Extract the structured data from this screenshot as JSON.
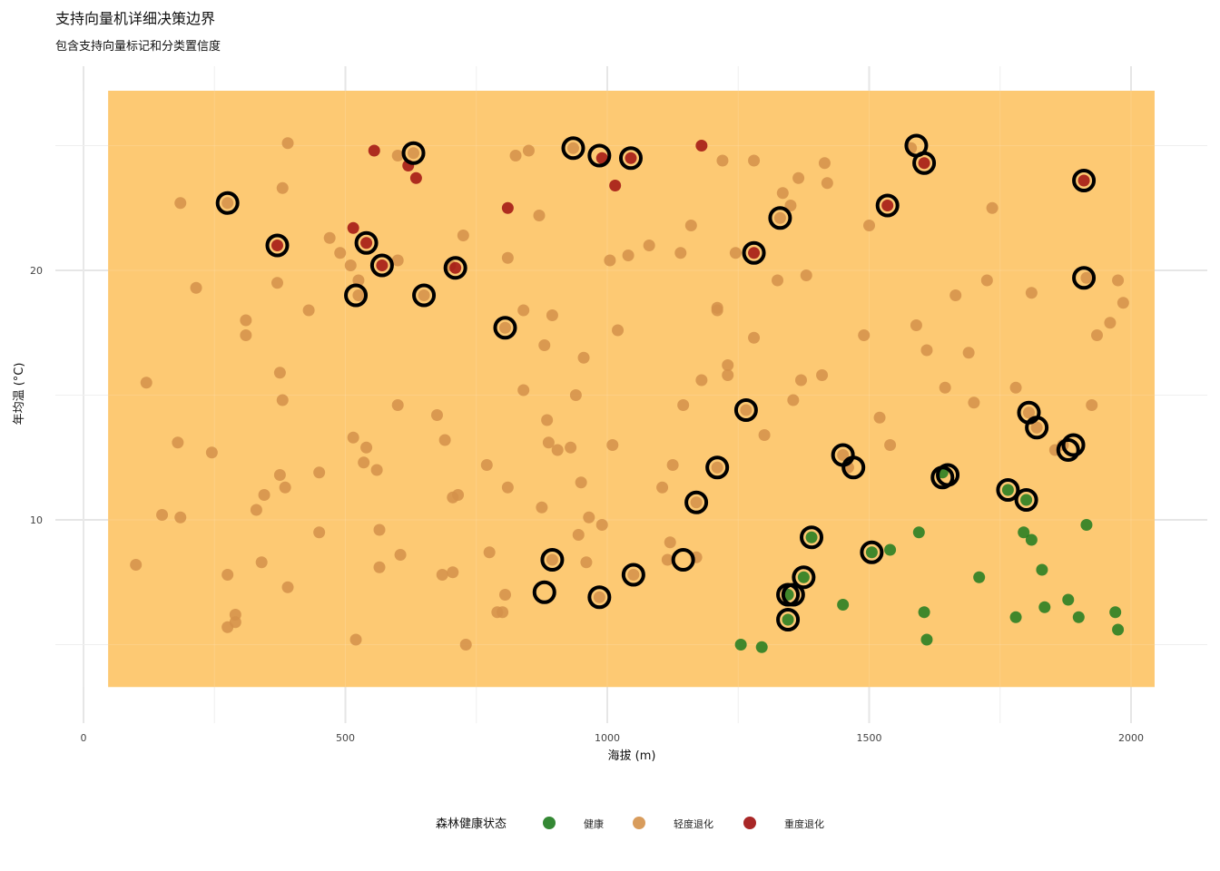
{
  "chart_data": {
    "type": "scatter",
    "title": "支持向量机详细决策边界",
    "subtitle": "包含支持向量标记和分类置信度",
    "xlabel": "海拔 (m)",
    "ylabel": "年均温 (°C)",
    "xlim": [
      0,
      2100
    ],
    "ylim": [
      2.5,
      28.3
    ],
    "x_ticks": [
      0,
      500,
      1000,
      1500,
      2000
    ],
    "y_ticks": [
      10,
      20
    ],
    "grid": true,
    "legend_position": "bottom",
    "legend_title": "森林健康状态",
    "decision_region": {
      "x": [
        47,
        2045
      ],
      "y": [
        3.3,
        27.2
      ],
      "class": "轻度退化",
      "color": "#FDC973"
    },
    "series": [
      {
        "name": "健康",
        "color": "#1E7B1E",
        "points": [
          [
            1255,
            5.0
          ],
          [
            1295,
            4.9
          ],
          [
            1345,
            7.0
          ],
          [
            1345,
            6.0
          ],
          [
            1375,
            7.7
          ],
          [
            1390,
            9.3
          ],
          [
            1450,
            6.6
          ],
          [
            1505,
            8.7
          ],
          [
            1540,
            8.8
          ],
          [
            1595,
            9.5
          ],
          [
            1605,
            6.3
          ],
          [
            1610,
            5.2
          ],
          [
            1640,
            11.9
          ],
          [
            1710,
            7.7
          ],
          [
            1765,
            11.2
          ],
          [
            1780,
            6.1
          ],
          [
            1795,
            9.5
          ],
          [
            1800,
            10.8
          ],
          [
            1810,
            9.2
          ],
          [
            1830,
            8.0
          ],
          [
            1835,
            6.5
          ],
          [
            1880,
            6.8
          ],
          [
            1900,
            6.1
          ],
          [
            1915,
            9.8
          ],
          [
            1970,
            6.3
          ],
          [
            1975,
            5.6
          ]
        ]
      },
      {
        "name": "轻度退化",
        "color": "#D4914A",
        "points": [
          [
            100,
            8.2
          ],
          [
            120,
            15.5
          ],
          [
            150,
            10.2
          ],
          [
            180,
            13.1
          ],
          [
            185,
            22.7
          ],
          [
            185,
            10.1
          ],
          [
            215,
            19.3
          ],
          [
            245,
            12.7
          ],
          [
            275,
            7.8
          ],
          [
            275,
            22.7
          ],
          [
            275,
            5.7
          ],
          [
            290,
            6.2
          ],
          [
            290,
            5.9
          ],
          [
            310,
            18.0
          ],
          [
            310,
            17.4
          ],
          [
            330,
            10.4
          ],
          [
            340,
            8.3
          ],
          [
            345,
            11.0
          ],
          [
            370,
            19.5
          ],
          [
            375,
            15.9
          ],
          [
            375,
            11.8
          ],
          [
            380,
            14.8
          ],
          [
            380,
            23.3
          ],
          [
            385,
            11.3
          ],
          [
            390,
            25.1
          ],
          [
            390,
            7.3
          ],
          [
            430,
            18.4
          ],
          [
            450,
            11.9
          ],
          [
            450,
            9.5
          ],
          [
            470,
            21.3
          ],
          [
            490,
            20.7
          ],
          [
            510,
            20.2
          ],
          [
            515,
            13.3
          ],
          [
            520,
            5.2
          ],
          [
            525,
            19.6
          ],
          [
            525,
            19.0
          ],
          [
            535,
            12.3
          ],
          [
            540,
            12.9
          ],
          [
            560,
            12.0
          ],
          [
            565,
            8.1
          ],
          [
            565,
            9.6
          ],
          [
            600,
            20.4
          ],
          [
            600,
            14.6
          ],
          [
            600,
            24.6
          ],
          [
            605,
            8.6
          ],
          [
            630,
            24.7
          ],
          [
            650,
            19.0
          ],
          [
            675,
            14.2
          ],
          [
            685,
            7.8
          ],
          [
            690,
            13.2
          ],
          [
            700,
            20.2
          ],
          [
            705,
            10.9
          ],
          [
            705,
            7.9
          ],
          [
            715,
            11.0
          ],
          [
            725,
            21.4
          ],
          [
            730,
            5.0
          ],
          [
            770,
            12.2
          ],
          [
            775,
            8.7
          ],
          [
            790,
            6.3
          ],
          [
            800,
            6.3
          ],
          [
            805,
            7.0
          ],
          [
            805,
            17.7
          ],
          [
            810,
            20.5
          ],
          [
            810,
            11.3
          ],
          [
            825,
            24.6
          ],
          [
            840,
            18.4
          ],
          [
            840,
            15.2
          ],
          [
            850,
            24.8
          ],
          [
            870,
            22.2
          ],
          [
            875,
            10.5
          ],
          [
            880,
            17.0
          ],
          [
            885,
            14.0
          ],
          [
            888,
            13.1
          ],
          [
            895,
            8.4
          ],
          [
            895,
            18.2
          ],
          [
            905,
            12.8
          ],
          [
            930,
            12.9
          ],
          [
            935,
            24.9
          ],
          [
            940,
            15.0
          ],
          [
            945,
            9.4
          ],
          [
            950,
            11.5
          ],
          [
            955,
            16.5
          ],
          [
            960,
            8.3
          ],
          [
            965,
            10.1
          ],
          [
            985,
            6.9
          ],
          [
            990,
            9.8
          ],
          [
            1005,
            20.4
          ],
          [
            1010,
            13.0
          ],
          [
            1020,
            17.6
          ],
          [
            1040,
            20.6
          ],
          [
            1050,
            7.8
          ],
          [
            1080,
            21.0
          ],
          [
            1105,
            11.3
          ],
          [
            1115,
            8.4
          ],
          [
            1120,
            9.1
          ],
          [
            1125,
            12.2
          ],
          [
            1140,
            20.7
          ],
          [
            1145,
            14.6
          ],
          [
            1160,
            21.8
          ],
          [
            1170,
            8.5
          ],
          [
            1170,
            10.7
          ],
          [
            1180,
            15.6
          ],
          [
            1210,
            18.5
          ],
          [
            1210,
            18.4
          ],
          [
            1220,
            24.4
          ],
          [
            1210,
            12.1
          ],
          [
            1230,
            16.2
          ],
          [
            1230,
            15.8
          ],
          [
            1245,
            20.7
          ],
          [
            1265,
            14.4
          ],
          [
            1280,
            17.3
          ],
          [
            1280,
            24.4
          ],
          [
            1300,
            13.4
          ],
          [
            1325,
            19.6
          ],
          [
            1330,
            22.1
          ],
          [
            1335,
            23.1
          ],
          [
            1350,
            22.6
          ],
          [
            1355,
            14.8
          ],
          [
            1365,
            23.7
          ],
          [
            1370,
            15.6
          ],
          [
            1380,
            19.8
          ],
          [
            1410,
            15.8
          ],
          [
            1415,
            24.3
          ],
          [
            1420,
            23.5
          ],
          [
            1450,
            12.6
          ],
          [
            1460,
            12.1
          ],
          [
            1490,
            17.4
          ],
          [
            1500,
            21.8
          ],
          [
            1520,
            14.1
          ],
          [
            1540,
            13.0
          ],
          [
            1580,
            24.9
          ],
          [
            1590,
            17.8
          ],
          [
            1610,
            16.8
          ],
          [
            1645,
            15.3
          ],
          [
            1665,
            19.0
          ],
          [
            1690,
            16.7
          ],
          [
            1700,
            14.7
          ],
          [
            1725,
            19.6
          ],
          [
            1735,
            22.5
          ],
          [
            1780,
            15.3
          ],
          [
            1805,
            14.3
          ],
          [
            1810,
            19.1
          ],
          [
            1820,
            13.7
          ],
          [
            1855,
            12.8
          ],
          [
            1870,
            13.0
          ],
          [
            1915,
            19.7
          ],
          [
            1925,
            14.6
          ],
          [
            1935,
            17.4
          ],
          [
            1960,
            17.9
          ],
          [
            1975,
            19.6
          ],
          [
            1985,
            18.7
          ]
        ]
      },
      {
        "name": "重度退化",
        "color": "#A01010",
        "points": [
          [
            370,
            21.0
          ],
          [
            515,
            21.7
          ],
          [
            540,
            21.1
          ],
          [
            555,
            24.8
          ],
          [
            570,
            20.2
          ],
          [
            620,
            24.2
          ],
          [
            635,
            23.7
          ],
          [
            710,
            20.1
          ],
          [
            810,
            22.5
          ],
          [
            990,
            24.5
          ],
          [
            1015,
            23.4
          ],
          [
            1045,
            24.5
          ],
          [
            1180,
            25.0
          ],
          [
            1280,
            20.7
          ],
          [
            1535,
            22.6
          ],
          [
            1605,
            24.3
          ],
          [
            1910,
            23.6
          ]
        ]
      }
    ],
    "support_vectors": [
      [
        275,
        22.7
      ],
      [
        370,
        21.0
      ],
      [
        520,
        19.0
      ],
      [
        540,
        21.1
      ],
      [
        570,
        20.2
      ],
      [
        630,
        24.7
      ],
      [
        650,
        19.0
      ],
      [
        710,
        20.1
      ],
      [
        805,
        17.7
      ],
      [
        880,
        7.1
      ],
      [
        895,
        8.4
      ],
      [
        935,
        24.9
      ],
      [
        985,
        24.6
      ],
      [
        985,
        6.9
      ],
      [
        1045,
        24.5
      ],
      [
        1050,
        7.8
      ],
      [
        1145,
        8.4
      ],
      [
        1170,
        10.7
      ],
      [
        1210,
        12.1
      ],
      [
        1265,
        14.4
      ],
      [
        1280,
        20.7
      ],
      [
        1330,
        22.1
      ],
      [
        1345,
        7.0
      ],
      [
        1345,
        6.0
      ],
      [
        1355,
        7.0
      ],
      [
        1375,
        7.7
      ],
      [
        1390,
        9.3
      ],
      [
        1450,
        12.6
      ],
      [
        1470,
        12.1
      ],
      [
        1505,
        8.7
      ],
      [
        1535,
        22.6
      ],
      [
        1590,
        25.0
      ],
      [
        1605,
        24.3
      ],
      [
        1640,
        11.7
      ],
      [
        1650,
        11.8
      ],
      [
        1765,
        11.2
      ],
      [
        1800,
        10.8
      ],
      [
        1805,
        14.3
      ],
      [
        1820,
        13.7
      ],
      [
        1880,
        12.8
      ],
      [
        1890,
        13.0
      ],
      [
        1910,
        23.6
      ],
      [
        1910,
        19.7
      ]
    ]
  }
}
